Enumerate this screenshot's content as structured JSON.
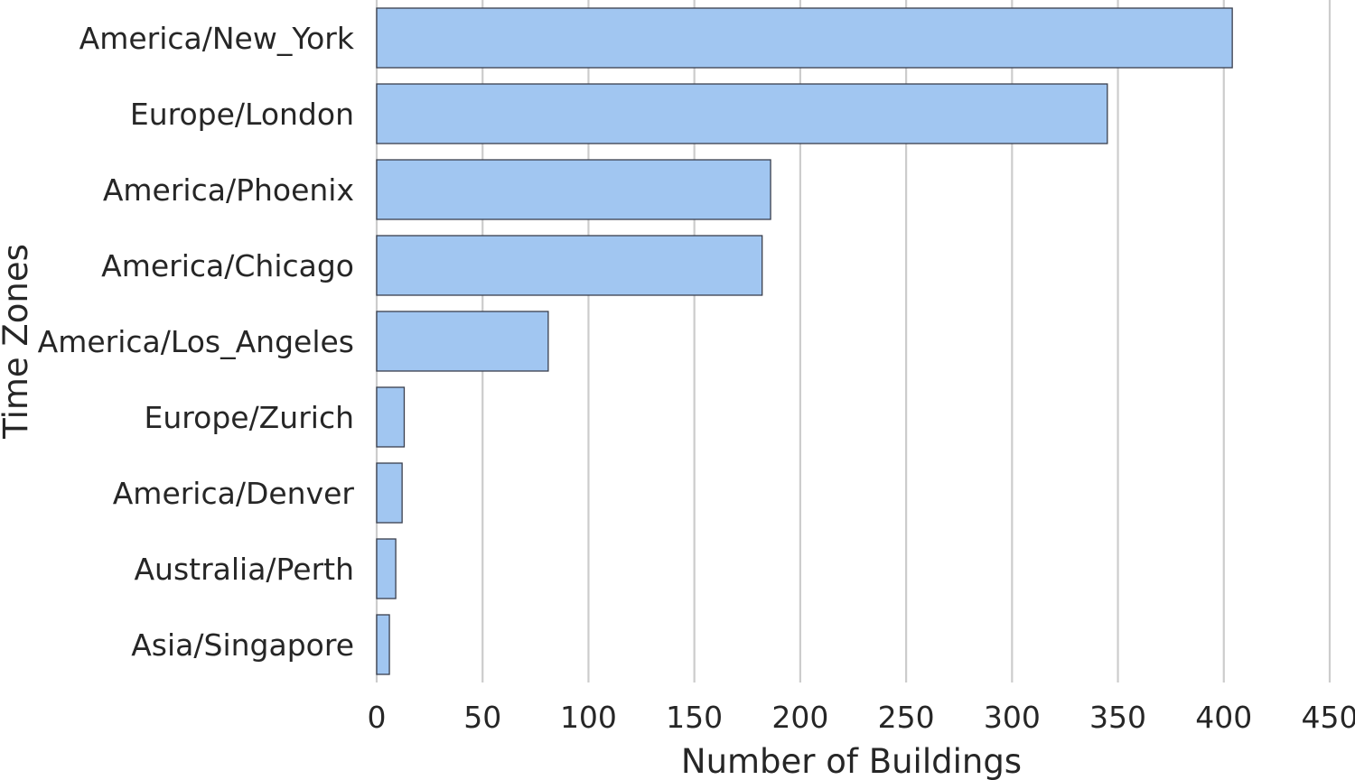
{
  "chart_data": {
    "type": "bar",
    "orientation": "horizontal",
    "title": "",
    "xlabel": "Number of Buildings",
    "ylabel": "Time Zones",
    "categories": [
      "America/New_York",
      "Europe/London",
      "America/Phoenix",
      "America/Chicago",
      "America/Los_Angeles",
      "Europe/Zurich",
      "America/Denver",
      "Australia/Perth",
      "Asia/Singapore"
    ],
    "values": [
      404,
      345,
      186,
      182,
      81,
      13,
      12,
      9,
      6
    ],
    "xlim": [
      0,
      450
    ],
    "xticks": [
      0,
      50,
      100,
      150,
      200,
      250,
      300,
      350,
      400,
      450
    ],
    "grid": "vertical",
    "legend": "none",
    "colors": {
      "bar": "#a1c6f1",
      "bar_edge": "#3a3f4d",
      "grid": "#cccccc",
      "text": "#262626"
    }
  }
}
